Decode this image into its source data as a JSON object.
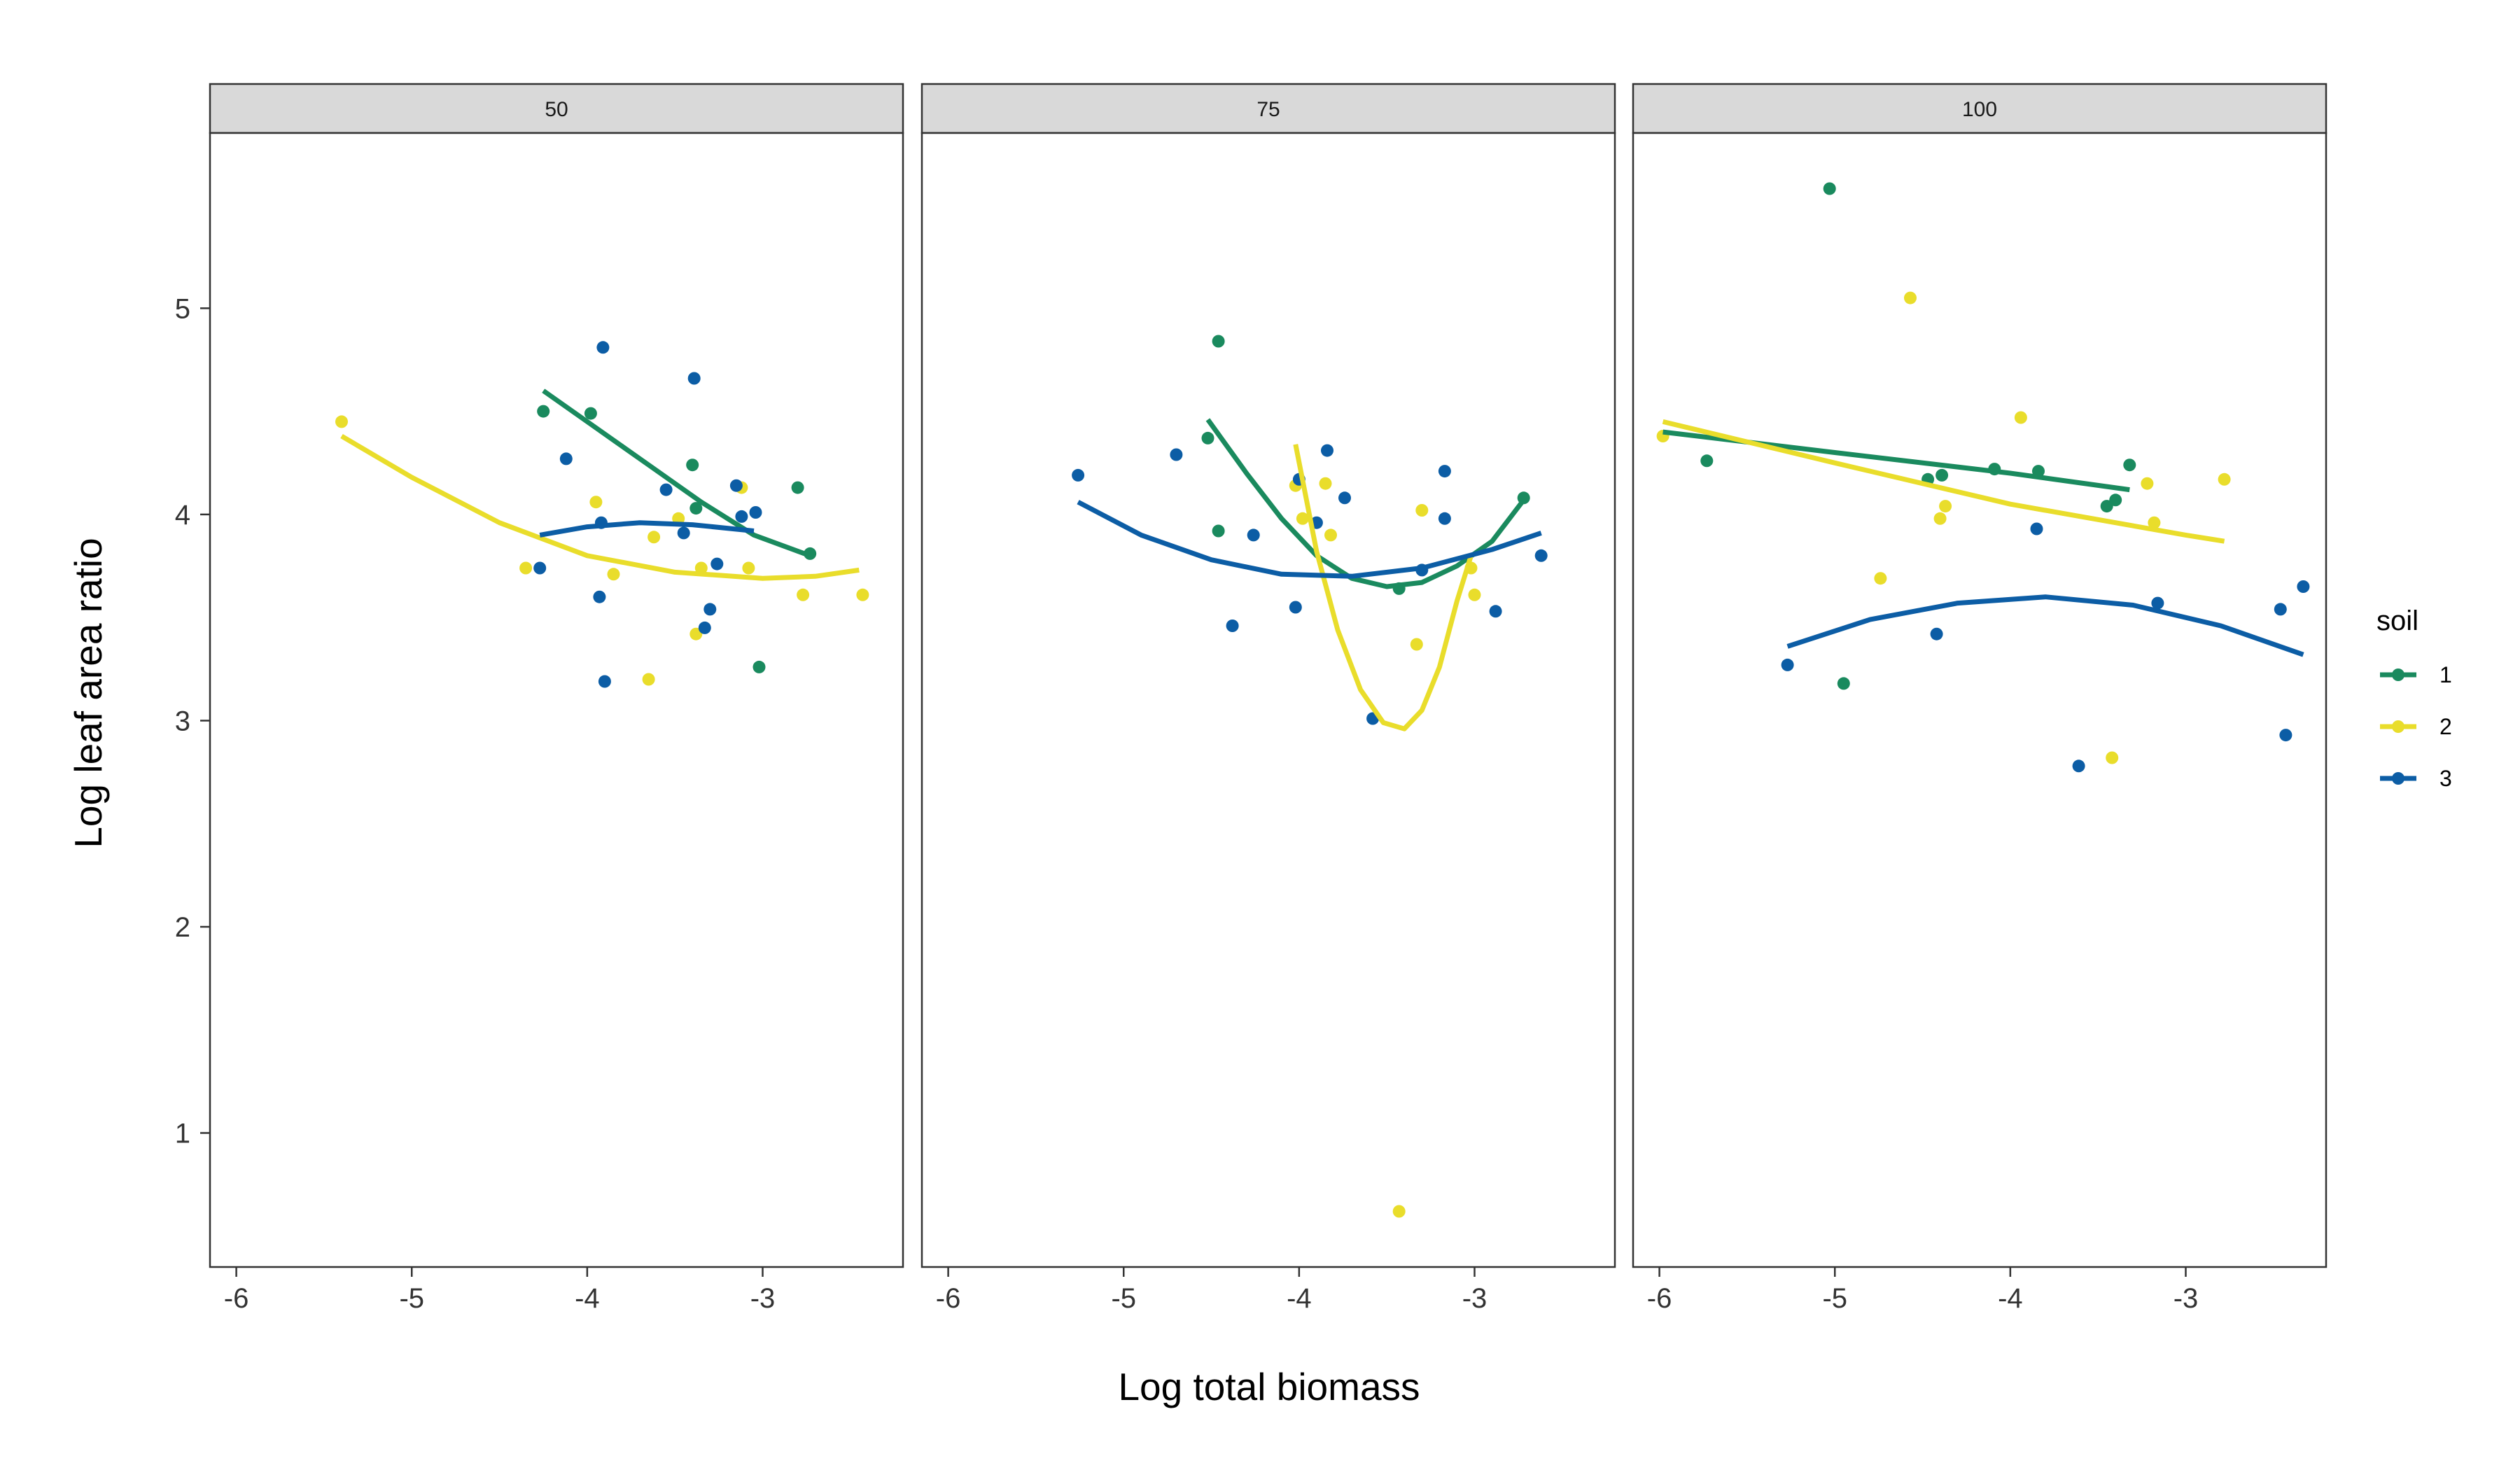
{
  "chart_data": {
    "type": "scatter",
    "xlabel": "Log total biomass",
    "ylabel": "Log leaf area ratio",
    "xlim": [
      -6.15,
      -2.2
    ],
    "ylim": [
      0.35,
      5.85
    ],
    "x_ticks": [
      -6,
      -5,
      -4,
      -3
    ],
    "y_ticks": [
      1,
      2,
      3,
      4,
      5
    ],
    "legend": {
      "title": "soil",
      "position": "right",
      "labels": [
        "1",
        "2",
        "3"
      ]
    },
    "colors": {
      "1": "#1a8a5e",
      "2": "#e9dd2b",
      "3": "#0c5da5"
    },
    "panels": [
      {
        "label": "50",
        "points": {
          "1": [
            [
              -4.25,
              4.5
            ],
            [
              -3.98,
              4.49
            ],
            [
              -3.4,
              4.24
            ],
            [
              -3.38,
              4.03
            ],
            [
              -2.8,
              4.13
            ],
            [
              -2.73,
              3.81
            ],
            [
              -3.02,
              3.26
            ]
          ],
          "2": [
            [
              -5.4,
              4.45
            ],
            [
              -4.35,
              3.74
            ],
            [
              -3.95,
              4.06
            ],
            [
              -3.85,
              3.71
            ],
            [
              -3.65,
              3.2
            ],
            [
              -3.62,
              3.89
            ],
            [
              -3.48,
              3.98
            ],
            [
              -3.38,
              3.42
            ],
            [
              -3.35,
              3.74
            ],
            [
              -3.12,
              4.13
            ],
            [
              -3.08,
              3.74
            ],
            [
              -2.77,
              3.61
            ],
            [
              -2.43,
              3.61
            ]
          ],
          "3": [
            [
              -4.27,
              3.74
            ],
            [
              -4.12,
              4.27
            ],
            [
              -3.93,
              3.6
            ],
            [
              -3.92,
              3.96
            ],
            [
              -3.91,
              4.81
            ],
            [
              -3.9,
              3.19
            ],
            [
              -3.55,
              4.12
            ],
            [
              -3.45,
              3.91
            ],
            [
              -3.39,
              4.66
            ],
            [
              -3.33,
              3.45
            ],
            [
              -3.3,
              3.54
            ],
            [
              -3.26,
              3.76
            ],
            [
              -3.15,
              4.14
            ],
            [
              -3.12,
              3.99
            ],
            [
              -3.04,
              4.01
            ]
          ]
        },
        "fits": {
          "1": [
            [
              -4.25,
              4.6
            ],
            [
              -3.95,
              4.42
            ],
            [
              -3.65,
              4.24
            ],
            [
              -3.35,
              4.06
            ],
            [
              -3.05,
              3.9
            ],
            [
              -2.73,
              3.8
            ]
          ],
          "2": [
            [
              -5.4,
              4.38
            ],
            [
              -5.0,
              4.18
            ],
            [
              -4.5,
              3.96
            ],
            [
              -4.0,
              3.8
            ],
            [
              -3.5,
              3.72
            ],
            [
              -3.0,
              3.69
            ],
            [
              -2.7,
              3.7
            ],
            [
              -2.45,
              3.73
            ]
          ],
          "3": [
            [
              -4.27,
              3.9
            ],
            [
              -4.0,
              3.94
            ],
            [
              -3.7,
              3.96
            ],
            [
              -3.4,
              3.95
            ],
            [
              -3.05,
              3.92
            ]
          ]
        }
      },
      {
        "label": "75",
        "points": {
          "1": [
            [
              -4.52,
              4.37
            ],
            [
              -4.46,
              4.84
            ],
            [
              -4.46,
              3.92
            ],
            [
              -3.43,
              3.64
            ],
            [
              -2.72,
              4.08
            ]
          ],
          "2": [
            [
              -4.02,
              4.14
            ],
            [
              -3.98,
              3.98
            ],
            [
              -3.85,
              4.15
            ],
            [
              -3.82,
              3.9
            ],
            [
              -3.43,
              0.62
            ],
            [
              -3.33,
              3.37
            ],
            [
              -3.3,
              4.02
            ],
            [
              -3.02,
              3.74
            ],
            [
              -3.0,
              3.61
            ]
          ],
          "3": [
            [
              -5.26,
              4.19
            ],
            [
              -4.7,
              4.29
            ],
            [
              -4.38,
              3.46
            ],
            [
              -4.26,
              3.9
            ],
            [
              -4.02,
              3.55
            ],
            [
              -4.0,
              4.17
            ],
            [
              -3.9,
              3.96
            ],
            [
              -3.84,
              4.31
            ],
            [
              -3.74,
              4.08
            ],
            [
              -3.58,
              3.01
            ],
            [
              -3.3,
              3.73
            ],
            [
              -3.17,
              3.98
            ],
            [
              -3.17,
              4.21
            ],
            [
              -2.88,
              3.53
            ],
            [
              -2.62,
              3.8
            ]
          ]
        },
        "fits": {
          "1": [
            [
              -4.52,
              4.46
            ],
            [
              -4.3,
              4.2
            ],
            [
              -4.1,
              3.98
            ],
            [
              -3.9,
              3.8
            ],
            [
              -3.7,
              3.69
            ],
            [
              -3.5,
              3.65
            ],
            [
              -3.3,
              3.67
            ],
            [
              -3.1,
              3.75
            ],
            [
              -2.9,
              3.87
            ],
            [
              -2.72,
              4.07
            ]
          ],
          "2": [
            [
              -4.02,
              4.34
            ],
            [
              -3.9,
              3.82
            ],
            [
              -3.78,
              3.44
            ],
            [
              -3.65,
              3.15
            ],
            [
              -3.52,
              2.99
            ],
            [
              -3.4,
              2.96
            ],
            [
              -3.3,
              3.05
            ],
            [
              -3.2,
              3.26
            ],
            [
              -3.1,
              3.58
            ],
            [
              -3.02,
              3.8
            ]
          ],
          "3": [
            [
              -5.26,
              4.06
            ],
            [
              -4.9,
              3.9
            ],
            [
              -4.5,
              3.78
            ],
            [
              -4.1,
              3.71
            ],
            [
              -3.7,
              3.7
            ],
            [
              -3.3,
              3.74
            ],
            [
              -2.9,
              3.83
            ],
            [
              -2.62,
              3.91
            ]
          ]
        }
      },
      {
        "label": "100",
        "points": {
          "1": [
            [
              -5.73,
              4.26
            ],
            [
              -5.03,
              5.58
            ],
            [
              -4.95,
              3.18
            ],
            [
              -4.47,
              4.17
            ],
            [
              -4.39,
              4.19
            ],
            [
              -4.09,
              4.22
            ],
            [
              -3.84,
              4.21
            ],
            [
              -3.45,
              4.04
            ],
            [
              -3.4,
              4.07
            ],
            [
              -3.32,
              4.24
            ]
          ],
          "2": [
            [
              -5.98,
              4.38
            ],
            [
              -4.57,
              5.05
            ],
            [
              -4.74,
              3.69
            ],
            [
              -4.4,
              3.98
            ],
            [
              -4.37,
              4.04
            ],
            [
              -3.94,
              4.47
            ],
            [
              -3.42,
              2.82
            ],
            [
              -3.22,
              4.15
            ],
            [
              -3.18,
              3.96
            ],
            [
              -2.78,
              4.17
            ]
          ],
          "3": [
            [
              -5.27,
              3.27
            ],
            [
              -4.42,
              3.42
            ],
            [
              -3.85,
              3.93
            ],
            [
              -3.61,
              2.78
            ],
            [
              -3.16,
              3.57
            ],
            [
              -2.46,
              3.54
            ],
            [
              -2.43,
              2.93
            ],
            [
              -2.33,
              3.65
            ]
          ]
        },
        "fits": {
          "1": [
            [
              -5.98,
              4.4
            ],
            [
              -5.0,
              4.3
            ],
            [
              -4.0,
              4.2
            ],
            [
              -3.32,
              4.12
            ]
          ],
          "2": [
            [
              -5.98,
              4.45
            ],
            [
              -5.0,
              4.25
            ],
            [
              -4.0,
              4.05
            ],
            [
              -3.0,
              3.9
            ],
            [
              -2.78,
              3.87
            ]
          ],
          "3": [
            [
              -5.27,
              3.36
            ],
            [
              -4.8,
              3.49
            ],
            [
              -4.3,
              3.57
            ],
            [
              -3.8,
              3.6
            ],
            [
              -3.3,
              3.56
            ],
            [
              -2.8,
              3.46
            ],
            [
              -2.33,
              3.32
            ]
          ]
        }
      }
    ]
  }
}
